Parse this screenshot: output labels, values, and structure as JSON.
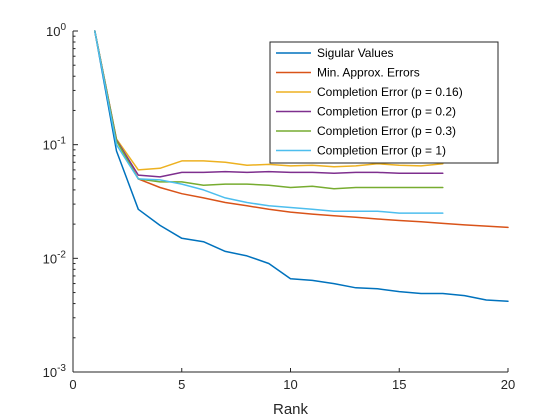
{
  "chart_data": {
    "type": "line",
    "title": "",
    "xlabel": "Rank",
    "ylabel": "",
    "xlim": [
      0,
      20
    ],
    "ylim": [
      0.001,
      1
    ],
    "yscale": "log",
    "grid": false,
    "legend_position": "top-right",
    "x_ticks": [
      0,
      5,
      10,
      15,
      20
    ],
    "y_ticks": [
      {
        "value": 0.001,
        "base": "10",
        "exp": "-3"
      },
      {
        "value": 0.01,
        "base": "10",
        "exp": "-2"
      },
      {
        "value": 0.1,
        "base": "10",
        "exp": "-1"
      },
      {
        "value": 1,
        "base": "10",
        "exp": "0"
      }
    ],
    "series": [
      {
        "name": "Sigular Values",
        "color": "#0072BD",
        "x": [
          1,
          2,
          3,
          4,
          5,
          6,
          7,
          8,
          9,
          10,
          11,
          12,
          13,
          14,
          15,
          16,
          17,
          18,
          19,
          20
        ],
        "y": [
          1.0,
          0.088,
          0.027,
          0.0195,
          0.015,
          0.014,
          0.0115,
          0.0105,
          0.009,
          0.0066,
          0.0064,
          0.006,
          0.0055,
          0.0054,
          0.0051,
          0.0049,
          0.0049,
          0.0047,
          0.0043,
          0.0042
        ]
      },
      {
        "name": "Min. Approx. Errors",
        "color": "#D95319",
        "x": [
          1,
          2,
          3,
          4,
          5,
          6,
          7,
          8,
          9,
          10,
          11,
          12,
          13,
          14,
          15,
          16,
          17,
          18,
          19,
          20
        ],
        "y": [
          1.0,
          0.11,
          0.05,
          0.042,
          0.037,
          0.034,
          0.031,
          0.029,
          0.027,
          0.0255,
          0.0245,
          0.0237,
          0.023,
          0.0222,
          0.0215,
          0.021,
          0.0203,
          0.0197,
          0.0192,
          0.0187
        ]
      },
      {
        "name": "Completion Error (p = 0.16)",
        "color": "#EDB120",
        "x": [
          1,
          2,
          3,
          4,
          5,
          6,
          7,
          8,
          9,
          10,
          11,
          12,
          13,
          14,
          15,
          16,
          17
        ],
        "y": [
          1.0,
          0.112,
          0.06,
          0.062,
          0.072,
          0.072,
          0.07,
          0.066,
          0.067,
          0.065,
          0.066,
          0.064,
          0.065,
          0.068,
          0.066,
          0.065,
          0.068
        ]
      },
      {
        "name": "Completion Error (p = 0.2)",
        "color": "#7E2F8E",
        "x": [
          1,
          2,
          3,
          4,
          5,
          6,
          7,
          8,
          9,
          10,
          11,
          12,
          13,
          14,
          15,
          16,
          17
        ],
        "y": [
          1.0,
          0.11,
          0.054,
          0.052,
          0.057,
          0.057,
          0.058,
          0.057,
          0.058,
          0.057,
          0.057,
          0.056,
          0.057,
          0.057,
          0.056,
          0.056,
          0.056
        ]
      },
      {
        "name": "Completion Error (p = 0.3)",
        "color": "#77AC30",
        "x": [
          1,
          2,
          3,
          4,
          5,
          6,
          7,
          8,
          9,
          10,
          11,
          12,
          13,
          14,
          15,
          16,
          17
        ],
        "y": [
          1.0,
          0.108,
          0.05,
          0.047,
          0.047,
          0.044,
          0.045,
          0.045,
          0.044,
          0.042,
          0.043,
          0.041,
          0.042,
          0.042,
          0.042,
          0.042,
          0.042
        ]
      },
      {
        "name": "Completion Error (p = 1)",
        "color": "#4DBEEE",
        "x": [
          1,
          2,
          3,
          4,
          5,
          6,
          7,
          8,
          9,
          10,
          11,
          12,
          13,
          14,
          15,
          16,
          17
        ],
        "y": [
          1.0,
          0.1,
          0.05,
          0.049,
          0.045,
          0.04,
          0.034,
          0.031,
          0.029,
          0.028,
          0.027,
          0.026,
          0.026,
          0.026,
          0.025,
          0.025,
          0.025
        ]
      }
    ]
  }
}
